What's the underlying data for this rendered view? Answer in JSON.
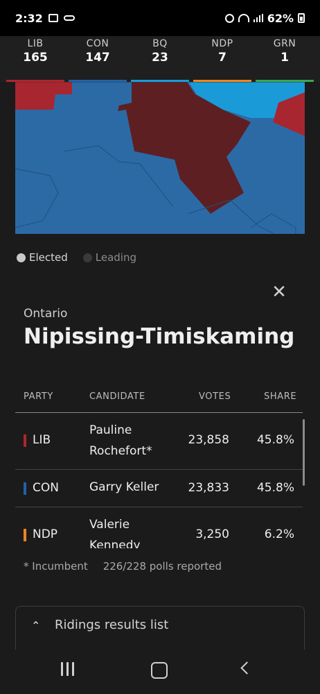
{
  "status": {
    "time": "2:32",
    "battery": "62%"
  },
  "parties": [
    {
      "code": "LIB",
      "seats": "165",
      "color": "#b0252d"
    },
    {
      "code": "CON",
      "seats": "147",
      "color": "#1f62a8"
    },
    {
      "code": "BQ",
      "seats": "23",
      "color": "#1a9bd8"
    },
    {
      "code": "NDP",
      "seats": "7",
      "color": "#f0851e"
    },
    {
      "code": "GRN",
      "seats": "1",
      "color": "#3aa655"
    }
  ],
  "legend": {
    "elected": "Elected",
    "leading": "Leading"
  },
  "riding": {
    "province": "Ontario",
    "name": "Nipissing-Timiskaming"
  },
  "table": {
    "headers": {
      "party": "PARTY",
      "candidate": "CANDIDATE",
      "votes": "VOTES",
      "share": "SHARE"
    },
    "rows": [
      {
        "party": "LIB",
        "color": "#b0252d",
        "candidate": "Pauline Rochefort*",
        "votes": "23,858",
        "share": "45.8%"
      },
      {
        "party": "CON",
        "color": "#1f62a8",
        "candidate": "Garry Keller",
        "votes": "23,833",
        "share": "45.8%"
      },
      {
        "party": "NDP",
        "color": "#f0851e",
        "candidate": "Valerie Kennedy",
        "votes": "3,250",
        "share": "6.2%"
      }
    ]
  },
  "footnote": {
    "incumbent": "* Incumbent",
    "polls": "226/228 polls reported"
  },
  "results_list": {
    "label": "Ridings results list"
  }
}
